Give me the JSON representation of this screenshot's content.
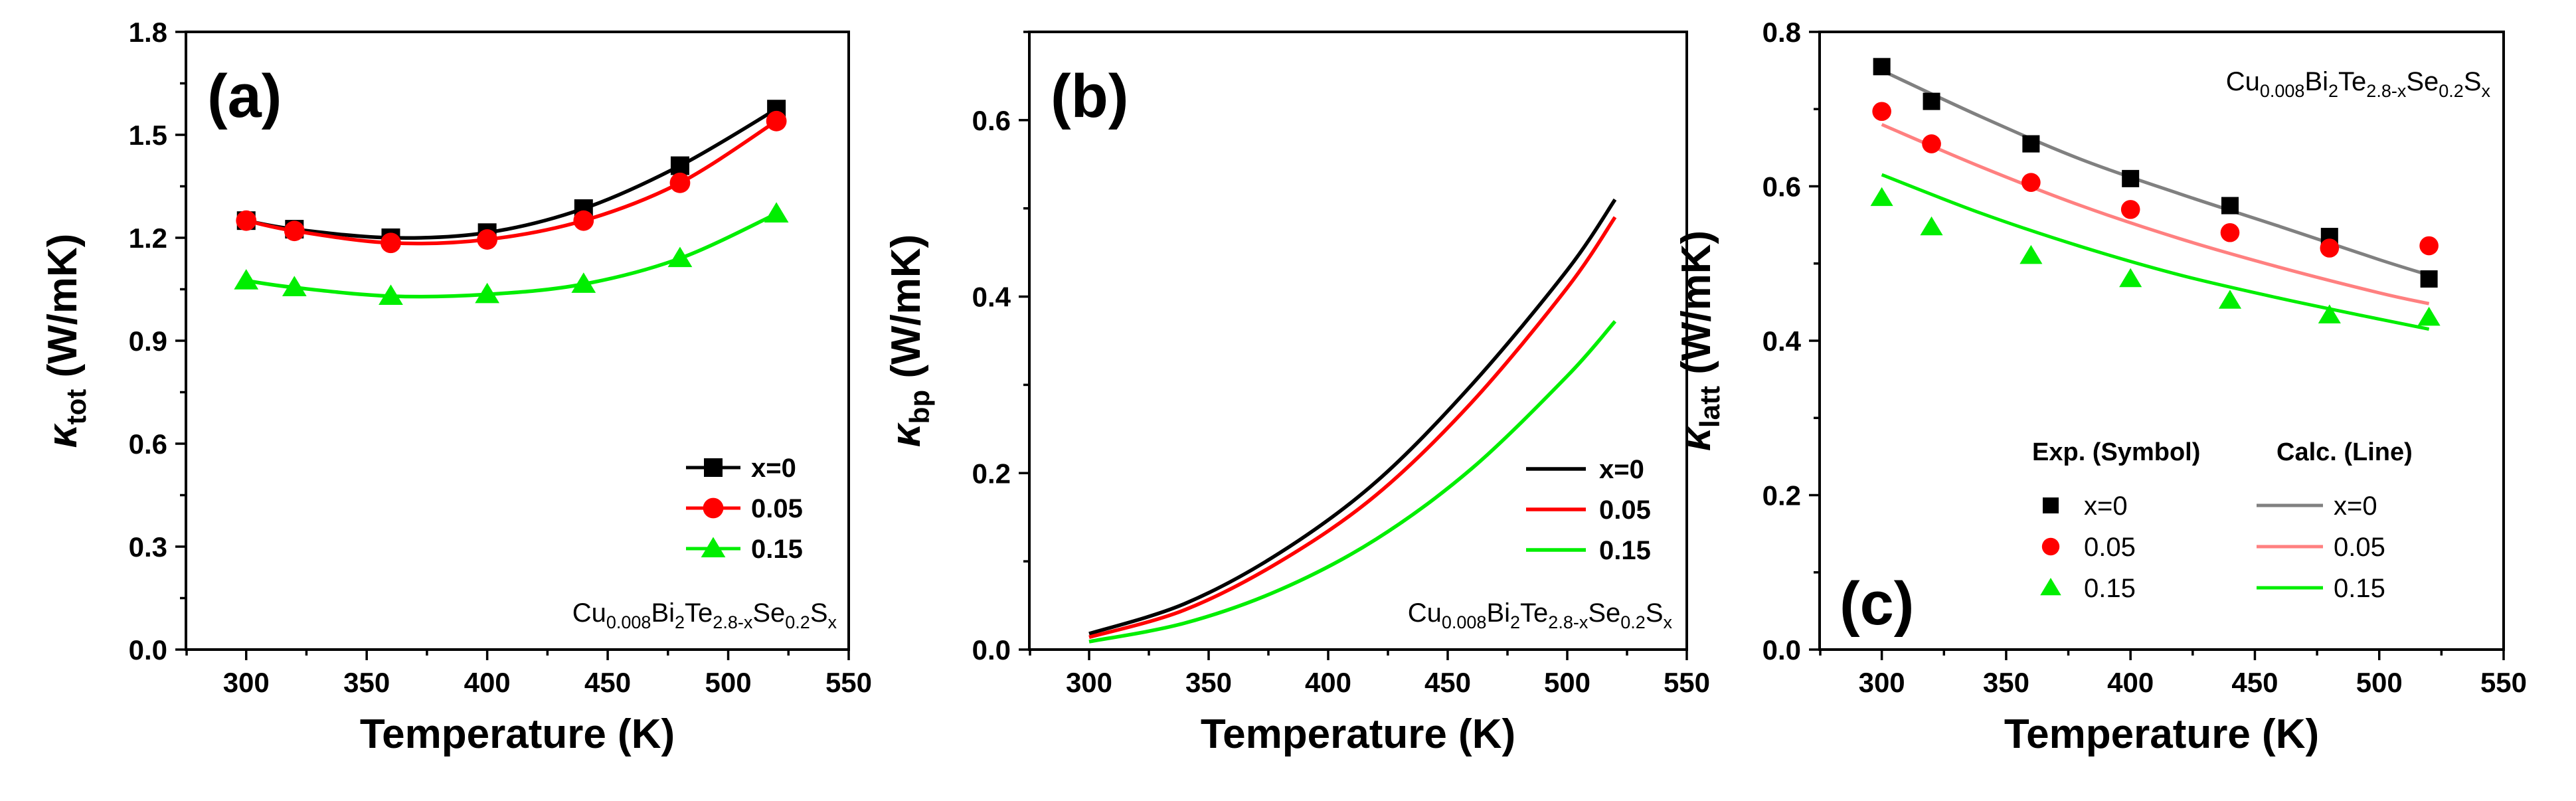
{
  "chart_data": [
    {
      "type": "line",
      "panel": "(a)",
      "xlabel": "Temperature (K)",
      "ylabel": {
        "symbol": "κ",
        "sub": "tot",
        "rest": " (W/mK)"
      },
      "xlim": [
        275,
        550
      ],
      "ylim": [
        0,
        1.8
      ],
      "xticks": [
        300,
        350,
        400,
        450,
        500,
        550
      ],
      "yticks": [
        "0.0",
        "0.3",
        "0.6",
        "0.9",
        "1.2",
        "1.5",
        "1.8"
      ],
      "formula": [
        [
          "Cu",
          ""
        ],
        [
          "0.008",
          "sub"
        ],
        [
          "Bi",
          ""
        ],
        [
          "2",
          "sub"
        ],
        [
          "Te",
          ""
        ],
        [
          "2.8-x",
          "sub"
        ],
        [
          "Se",
          ""
        ],
        [
          "0.2",
          "sub"
        ],
        [
          "S",
          ""
        ],
        [
          "x",
          "sub"
        ]
      ],
      "legend_position": "bottom-right",
      "series": [
        {
          "name": "x=0",
          "color": "#000000",
          "marker": "square",
          "x": [
            300,
            320,
            360,
            400,
            440,
            480,
            520
          ],
          "y": [
            1.25,
            1.225,
            1.2,
            1.215,
            1.285,
            1.41,
            1.575
          ]
        },
        {
          "name": "0.05",
          "color": "#ff0000",
          "marker": "circle",
          "x": [
            300,
            320,
            360,
            400,
            440,
            480,
            520
          ],
          "y": [
            1.25,
            1.22,
            1.185,
            1.195,
            1.25,
            1.36,
            1.54
          ]
        },
        {
          "name": "0.15",
          "color": "#00ee00",
          "marker": "triangle",
          "x": [
            300,
            320,
            360,
            400,
            440,
            480,
            520
          ],
          "y": [
            1.075,
            1.055,
            1.03,
            1.035,
            1.065,
            1.14,
            1.27
          ]
        }
      ]
    },
    {
      "type": "line",
      "panel": "(b)",
      "xlabel": "Temperature (K)",
      "ylabel": {
        "symbol": "κ",
        "sub": "bp",
        "rest": " (W/mK)"
      },
      "xlim": [
        275,
        550
      ],
      "ylim": [
        0,
        0.7
      ],
      "xticks": [
        300,
        350,
        400,
        450,
        500,
        550
      ],
      "yticks": [
        "0.0",
        "0.2",
        "0.4",
        "0.6"
      ],
      "formula": [
        [
          "Cu",
          ""
        ],
        [
          "0.008",
          "sub"
        ],
        [
          "Bi",
          ""
        ],
        [
          "2",
          "sub"
        ],
        [
          "Te",
          ""
        ],
        [
          "2.8-x",
          "sub"
        ],
        [
          "Se",
          ""
        ],
        [
          "0.2",
          "sub"
        ],
        [
          "S",
          ""
        ],
        [
          "x",
          "sub"
        ]
      ],
      "legend_position": "right",
      "series": [
        {
          "name": "x=0",
          "color": "#000000",
          "x": [
            300,
            340,
            380,
            420,
            460,
            500,
            520
          ],
          "y": [
            0.018,
            0.052,
            0.11,
            0.19,
            0.3,
            0.43,
            0.51
          ]
        },
        {
          "name": "0.05",
          "color": "#ff0000",
          "x": [
            300,
            340,
            380,
            420,
            460,
            500,
            520
          ],
          "y": [
            0.014,
            0.045,
            0.1,
            0.175,
            0.28,
            0.41,
            0.49
          ]
        },
        {
          "name": "0.15",
          "color": "#00ee00",
          "x": [
            300,
            340,
            380,
            420,
            460,
            500,
            520
          ],
          "y": [
            0.009,
            0.03,
            0.068,
            0.125,
            0.205,
            0.31,
            0.372
          ]
        }
      ]
    },
    {
      "type": "scatter",
      "panel": "(c)",
      "xlabel": "Temperature (K)",
      "ylabel": {
        "symbol": "κ",
        "sub": "latt",
        "rest": " (W/mK)"
      },
      "xlim": [
        275,
        550
      ],
      "ylim": [
        0,
        0.8
      ],
      "xticks": [
        300,
        350,
        400,
        450,
        500,
        550
      ],
      "yticks": [
        "0.0",
        "0.2",
        "0.4",
        "0.6",
        "0.8"
      ],
      "formula": [
        [
          "Cu",
          ""
        ],
        [
          "0.008",
          "sub"
        ],
        [
          "Bi",
          ""
        ],
        [
          "2",
          "sub"
        ],
        [
          "Te",
          ""
        ],
        [
          "2.8-x",
          "sub"
        ],
        [
          "Se",
          ""
        ],
        [
          "0.2",
          "sub"
        ],
        [
          "S",
          ""
        ],
        [
          "x",
          "sub"
        ]
      ],
      "legend_position": "bottom-right",
      "legend_headers": [
        "Exp. (Symbol)",
        "Calc. (Line)"
      ],
      "series": [
        {
          "name": "x=0",
          "color": "#000000",
          "line_color": "#808080",
          "marker": "square",
          "x": [
            300,
            320,
            360,
            400,
            440,
            480,
            520
          ],
          "y": [
            0.755,
            0.71,
            0.655,
            0.61,
            0.575,
            0.535,
            0.48
          ],
          "calc_x": [
            300,
            340,
            380,
            420,
            460,
            500,
            520
          ],
          "calc_y": [
            0.75,
            0.69,
            0.635,
            0.59,
            0.548,
            0.505,
            0.485
          ]
        },
        {
          "name": "0.05",
          "color": "#ff0000",
          "line_color": "#ff8080",
          "marker": "circle",
          "x": [
            300,
            320,
            360,
            400,
            440,
            480,
            520
          ],
          "y": [
            0.697,
            0.655,
            0.605,
            0.57,
            0.54,
            0.52,
            0.523
          ],
          "calc_x": [
            300,
            340,
            380,
            420,
            460,
            500,
            520
          ],
          "calc_y": [
            0.68,
            0.625,
            0.575,
            0.532,
            0.495,
            0.462,
            0.448
          ]
        },
        {
          "name": "0.15",
          "color": "#00ee00",
          "line_color": "#00ee00",
          "marker": "triangle",
          "x": [
            300,
            320,
            360,
            400,
            440,
            480,
            520
          ],
          "y": [
            0.585,
            0.547,
            0.51,
            0.48,
            0.452,
            0.433,
            0.43
          ],
          "calc_x": [
            300,
            340,
            380,
            420,
            460,
            500,
            520
          ],
          "calc_y": [
            0.615,
            0.565,
            0.522,
            0.485,
            0.455,
            0.428,
            0.415
          ]
        }
      ]
    }
  ]
}
